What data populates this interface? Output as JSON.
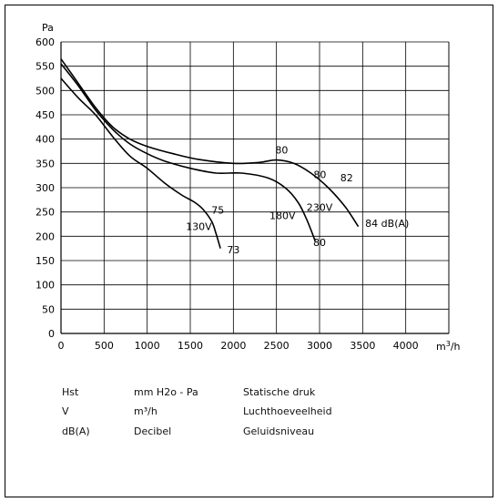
{
  "chart_data": {
    "type": "line",
    "ylabel": "Pa",
    "xlabel": "m³/h",
    "xlim": [
      0,
      4500
    ],
    "ylim": [
      0,
      600
    ],
    "x_ticks": [
      "0",
      "500",
      "1000",
      "1500",
      "2000",
      "2500",
      "3000",
      "3500",
      "4000"
    ],
    "y_ticks": [
      "0",
      "50",
      "100",
      "150",
      "200",
      "250",
      "300",
      "350",
      "400",
      "450",
      "500",
      "550",
      "600"
    ],
    "grid": true,
    "series": [
      {
        "name": "130V",
        "points": [
          [
            0,
            525
          ],
          [
            200,
            485
          ],
          [
            400,
            450
          ],
          [
            600,
            405
          ],
          [
            800,
            365
          ],
          [
            1000,
            340
          ],
          [
            1200,
            310
          ],
          [
            1400,
            285
          ],
          [
            1550,
            270
          ],
          [
            1650,
            255
          ],
          [
            1750,
            230
          ],
          [
            1800,
            205
          ],
          [
            1850,
            175
          ]
        ]
      },
      {
        "name": "180V",
        "points": [
          [
            0,
            555
          ],
          [
            200,
            510
          ],
          [
            400,
            460
          ],
          [
            600,
            420
          ],
          [
            800,
            390
          ],
          [
            1000,
            370
          ],
          [
            1200,
            355
          ],
          [
            1500,
            340
          ],
          [
            1800,
            330
          ],
          [
            2100,
            330
          ],
          [
            2400,
            320
          ],
          [
            2600,
            300
          ],
          [
            2750,
            270
          ],
          [
            2850,
            235
          ],
          [
            2950,
            190
          ]
        ]
      },
      {
        "name": "230V",
        "points": [
          [
            0,
            565
          ],
          [
            200,
            515
          ],
          [
            400,
            465
          ],
          [
            600,
            425
          ],
          [
            800,
            400
          ],
          [
            1000,
            385
          ],
          [
            1300,
            370
          ],
          [
            1600,
            358
          ],
          [
            2000,
            350
          ],
          [
            2300,
            352
          ],
          [
            2500,
            357
          ],
          [
            2700,
            350
          ],
          [
            2900,
            330
          ],
          [
            3100,
            300
          ],
          [
            3300,
            260
          ],
          [
            3450,
            220
          ]
        ]
      }
    ],
    "annotations": [
      "75",
      "130V",
      "73",
      "80",
      "180V",
      "80",
      "230V",
      "80",
      "82",
      "84 dB(A)"
    ]
  },
  "legend": [
    {
      "symbol": "Hst",
      "unit": "mm H2o - Pa",
      "meaning": "Statische druk"
    },
    {
      "symbol": "V",
      "unit": "m³/h",
      "meaning": "Luchthoeveelheid"
    },
    {
      "symbol": "dB(A)",
      "unit": "Decibel",
      "meaning": "Geluidsniveau"
    }
  ]
}
